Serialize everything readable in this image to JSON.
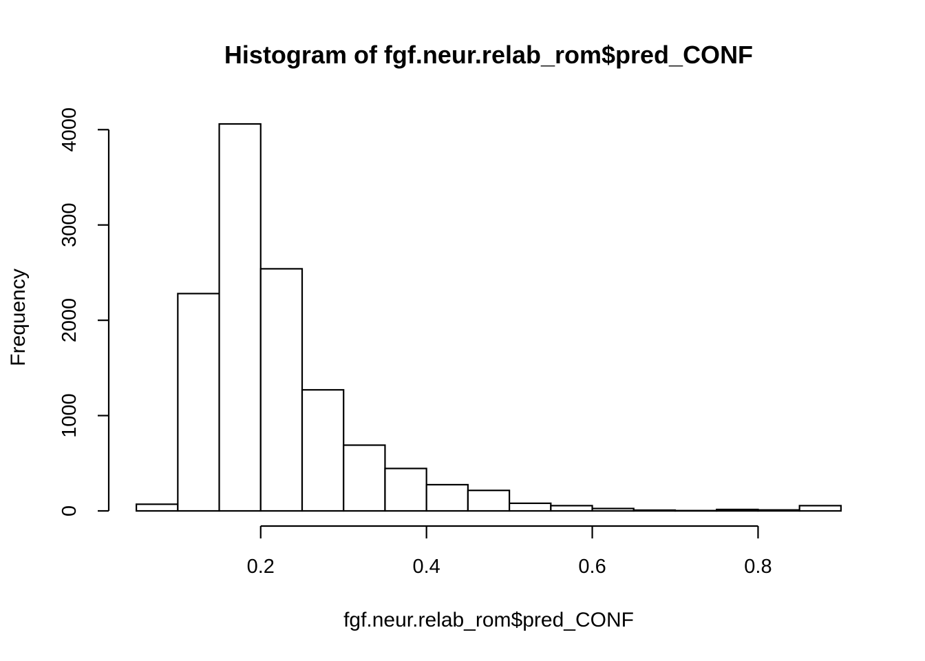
{
  "chart_data": {
    "type": "bar",
    "subtype": "histogram",
    "title": "Histogram of fgf.neur.relab_rom$pred_CONF",
    "xlabel": "fgf.neur.relab_rom$pred_CONF",
    "ylabel": "Frequency",
    "bin_width": 0.05,
    "bins": [
      {
        "start": 0.05,
        "end": 0.1,
        "count": 70
      },
      {
        "start": 0.1,
        "end": 0.15,
        "count": 2280
      },
      {
        "start": 0.15,
        "end": 0.2,
        "count": 4060
      },
      {
        "start": 0.2,
        "end": 0.25,
        "count": 2540
      },
      {
        "start": 0.25,
        "end": 0.3,
        "count": 1270
      },
      {
        "start": 0.3,
        "end": 0.35,
        "count": 690
      },
      {
        "start": 0.35,
        "end": 0.4,
        "count": 445
      },
      {
        "start": 0.4,
        "end": 0.45,
        "count": 275
      },
      {
        "start": 0.45,
        "end": 0.5,
        "count": 215
      },
      {
        "start": 0.5,
        "end": 0.55,
        "count": 80
      },
      {
        "start": 0.55,
        "end": 0.6,
        "count": 55
      },
      {
        "start": 0.6,
        "end": 0.65,
        "count": 25
      },
      {
        "start": 0.65,
        "end": 0.7,
        "count": 8
      },
      {
        "start": 0.7,
        "end": 0.75,
        "count": 3
      },
      {
        "start": 0.75,
        "end": 0.8,
        "count": 15
      },
      {
        "start": 0.8,
        "end": 0.85,
        "count": 10
      },
      {
        "start": 0.85,
        "end": 0.9,
        "count": 55
      }
    ],
    "x_ticks": [
      0.2,
      0.4,
      0.6,
      0.8
    ],
    "x_tick_labels": [
      "0.2",
      "0.4",
      "0.6",
      "0.8"
    ],
    "y_ticks": [
      0,
      1000,
      2000,
      3000,
      4000
    ],
    "y_tick_labels": [
      "0",
      "1000",
      "2000",
      "3000",
      "4000"
    ],
    "xlim": [
      0.0167,
      0.9333
    ],
    "ylim": [
      0,
      4060
    ],
    "grid": false,
    "legend": "none",
    "bar_fill": "#ffffff",
    "bar_stroke": "#000000"
  }
}
